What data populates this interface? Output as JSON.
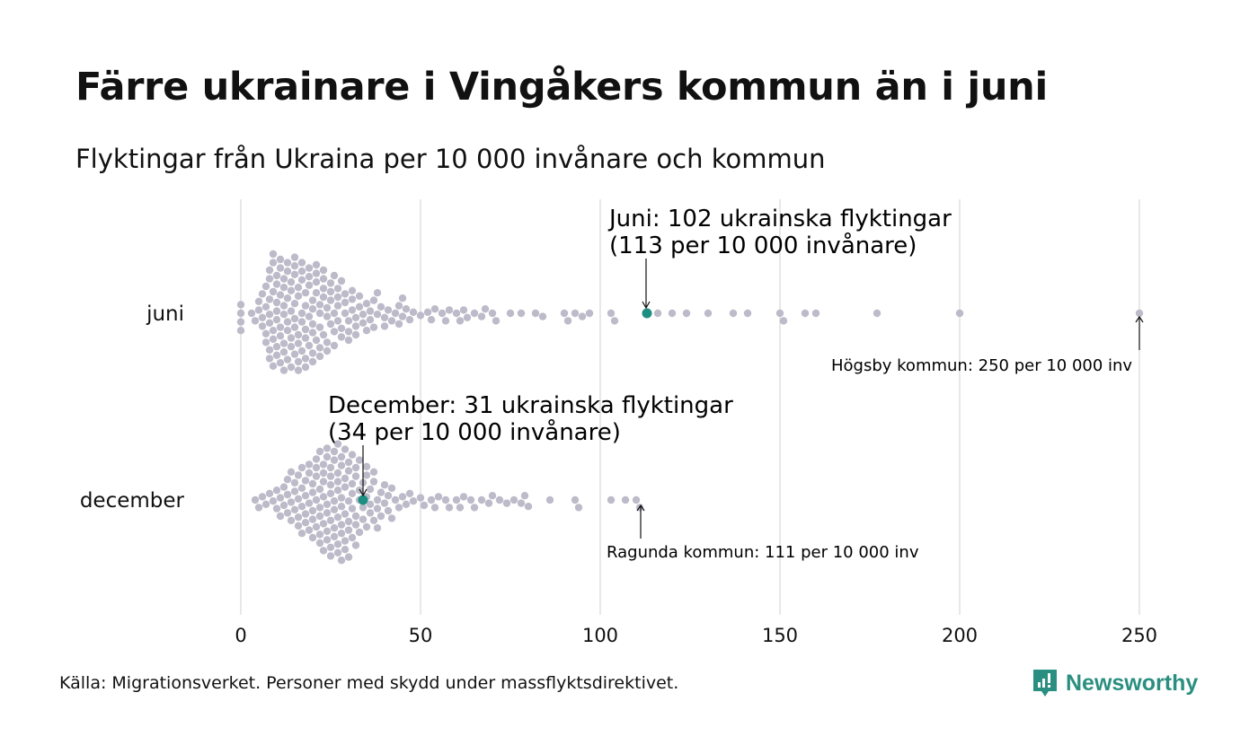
{
  "title": "Färre ukrainare i Vingåkers kommun än i juni",
  "subtitle": "Flyktingar från Ukraina per 10 000 invånare och kommun",
  "source": "Källa: Migrationsverket. Personer med skydd under massflyktsdirektivet.",
  "logo": "Newsworthy",
  "colors": {
    "dot": "#bdbbc9",
    "highlight": "#1d8f82",
    "grid": "#d0d0d0",
    "brand": "#2a8f80"
  },
  "chart_data": {
    "type": "scatter",
    "subtype": "beeswarm",
    "xlim": [
      0,
      250
    ],
    "xticks": [
      0,
      50,
      100,
      150,
      200,
      250
    ],
    "grid": "vertical",
    "series": [
      {
        "name": "juni",
        "highlight": 113,
        "values": [
          0,
          0,
          0,
          0,
          3,
          4,
          5,
          5,
          6,
          6,
          6,
          7,
          7,
          7,
          7,
          8,
          8,
          8,
          8,
          8,
          8,
          8,
          9,
          9,
          9,
          9,
          9,
          9,
          10,
          10,
          10,
          10,
          10,
          10,
          10,
          11,
          11,
          11,
          11,
          11,
          11,
          12,
          12,
          12,
          12,
          12,
          12,
          12,
          13,
          13,
          13,
          13,
          13,
          13,
          14,
          14,
          14,
          14,
          14,
          14,
          15,
          15,
          15,
          15,
          15,
          15,
          15,
          16,
          16,
          16,
          16,
          16,
          16,
          17,
          17,
          17,
          17,
          17,
          17,
          18,
          18,
          18,
          18,
          18,
          18,
          19,
          19,
          19,
          19,
          19,
          20,
          20,
          20,
          20,
          20,
          20,
          21,
          21,
          21,
          21,
          21,
          22,
          22,
          22,
          22,
          22,
          23,
          23,
          23,
          23,
          23,
          24,
          24,
          24,
          24,
          25,
          25,
          25,
          25,
          26,
          26,
          26,
          26,
          27,
          27,
          27,
          27,
          28,
          28,
          28,
          29,
          29,
          29,
          30,
          30,
          30,
          31,
          31,
          31,
          32,
          32,
          32,
          33,
          33,
          34,
          34,
          35,
          35,
          36,
          36,
          37,
          37,
          38,
          38,
          39,
          40,
          40,
          41,
          42,
          43,
          44,
          44,
          45,
          45,
          46,
          47,
          48,
          50,
          52,
          53,
          54,
          56,
          57,
          58,
          60,
          61,
          62,
          63,
          65,
          67,
          68,
          70,
          71,
          75,
          78,
          82,
          84,
          90,
          91,
          93,
          95,
          97,
          103,
          104,
          113,
          116,
          120,
          124,
          130,
          137,
          141,
          150,
          151,
          157,
          160,
          177,
          200,
          250
        ]
      },
      {
        "name": "december",
        "highlight": 34,
        "values": [
          4,
          5,
          6,
          7,
          8,
          9,
          10,
          10,
          11,
          11,
          12,
          12,
          13,
          13,
          13,
          14,
          14,
          14,
          15,
          15,
          15,
          16,
          16,
          16,
          16,
          17,
          17,
          17,
          17,
          18,
          18,
          18,
          18,
          19,
          19,
          19,
          19,
          20,
          20,
          20,
          20,
          20,
          21,
          21,
          21,
          21,
          21,
          22,
          22,
          22,
          22,
          22,
          22,
          23,
          23,
          23,
          23,
          23,
          23,
          24,
          24,
          24,
          24,
          24,
          24,
          25,
          25,
          25,
          25,
          25,
          25,
          25,
          26,
          26,
          26,
          26,
          26,
          26,
          27,
          27,
          27,
          27,
          27,
          27,
          27,
          28,
          28,
          28,
          28,
          28,
          28,
          28,
          29,
          29,
          29,
          29,
          29,
          29,
          30,
          30,
          30,
          30,
          30,
          30,
          31,
          31,
          31,
          31,
          31,
          32,
          32,
          32,
          32,
          32,
          33,
          33,
          33,
          33,
          34,
          34,
          34,
          35,
          35,
          35,
          35,
          36,
          36,
          36,
          37,
          37,
          37,
          38,
          38,
          38,
          39,
          39,
          40,
          40,
          41,
          41,
          42,
          42,
          43,
          44,
          45,
          46,
          47,
          48,
          50,
          51,
          53,
          54,
          55,
          57,
          58,
          60,
          61,
          62,
          64,
          65,
          67,
          69,
          70,
          72,
          74,
          76,
          78,
          79,
          80,
          86,
          93,
          94,
          103,
          107,
          110,
          111
        ]
      }
    ],
    "annotations": {
      "juni_1": "Juni: 102 ukrainska flyktingar",
      "juni_2": "(113 per 10 000 invånare)",
      "hogsby": "Högsby kommun: 250 per 10 000 inv",
      "dec_1": "December:  31 ukrainska flyktingar",
      "dec_2": "(34 per 10 000 invånare)",
      "ragunda": "Ragunda kommun: 111 per 10 000 inv"
    }
  }
}
